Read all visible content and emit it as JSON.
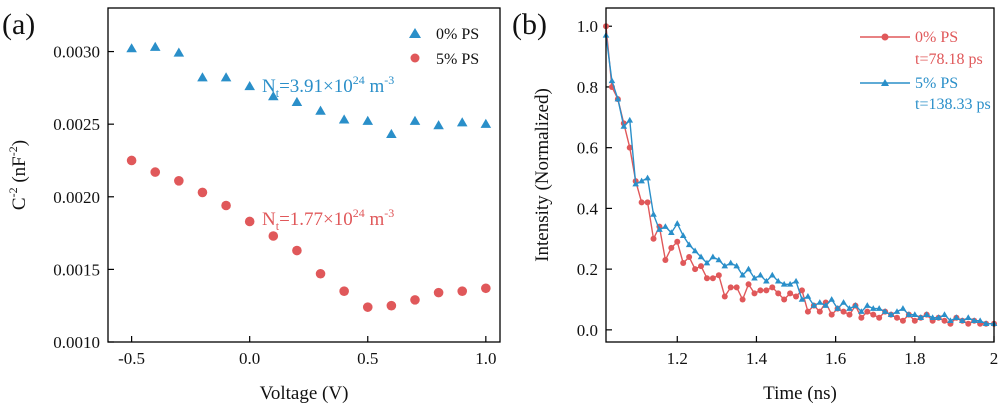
{
  "chart_data": [
    {
      "panel": "(a)",
      "type": "scatter",
      "xlabel": "Voltage (V)",
      "ylabel_base": "C",
      "ylabel_exp": "-2",
      "ylabel_unit_open": " (nF",
      "ylabel_unit_exp": "-2",
      "ylabel_unit_close": ")",
      "xlim": [
        -0.6,
        1.06
      ],
      "ylim": [
        0.001,
        0.0033
      ],
      "xticks": [
        -0.5,
        0.0,
        0.5,
        1.0
      ],
      "xtick_labels": [
        "-0.5",
        "0.0",
        "0.5",
        "1.0"
      ],
      "yticks": [
        0.001,
        0.0015,
        0.002,
        0.0025,
        0.003
      ],
      "ytick_labels": [
        "0.0010",
        "0.0015",
        "0.0020",
        "0.0025",
        "0.0030"
      ],
      "legend_position": "top-right",
      "series": [
        {
          "name": "0% PS",
          "marker": "triangle",
          "color": "#2a8fc9",
          "x": [
            -0.5,
            -0.4,
            -0.3,
            -0.2,
            -0.1,
            0.0,
            0.1,
            0.2,
            0.3,
            0.4,
            0.5,
            0.6,
            0.7,
            0.8,
            0.9,
            1.0
          ],
          "y": [
            0.00302,
            0.00303,
            0.00299,
            0.00282,
            0.00282,
            0.00276,
            0.00269,
            0.00265,
            0.00259,
            0.00253,
            0.00252,
            0.00243,
            0.00252,
            0.00249,
            0.00251,
            0.0025
          ]
        },
        {
          "name": "5% PS",
          "marker": "circle",
          "color": "#e0585a",
          "x": [
            -0.5,
            -0.4,
            -0.3,
            -0.2,
            -0.1,
            0.0,
            0.1,
            0.2,
            0.3,
            0.4,
            0.5,
            0.6,
            0.7,
            0.8,
            0.9,
            1.0
          ],
          "y": [
            0.00225,
            0.00217,
            0.00211,
            0.00203,
            0.00194,
            0.00183,
            0.00173,
            0.00163,
            0.00147,
            0.00135,
            0.00124,
            0.00125,
            0.00129,
            0.00134,
            0.00135,
            0.00137
          ]
        }
      ],
      "annotations": [
        {
          "pre": "N",
          "sub": "t",
          "mid": "=3.91×10",
          "sup": "24",
          "post": " m",
          "post_sup": "-3",
          "color": "#2a8fc9"
        },
        {
          "pre": "N",
          "sub": "t",
          "mid": "=1.77×10",
          "sup": "24",
          "post": " m",
          "post_sup": "-3",
          "color": "#e0585a"
        }
      ]
    },
    {
      "panel": "(b)",
      "type": "line",
      "xlabel": "Time (ns)",
      "ylabel": "Intensity (Normalized)",
      "xlim": [
        1.02,
        2.0
      ],
      "ylim": [
        -0.04,
        1.06
      ],
      "xticks": [
        1.2,
        1.4,
        1.6,
        1.8,
        2.0
      ],
      "xtick_labels": [
        "1.2",
        "1.4",
        "1.6",
        "1.8",
        "2"
      ],
      "yticks": [
        0.0,
        0.2,
        0.4,
        0.6,
        0.8,
        1.0
      ],
      "ytick_labels": [
        "0.0",
        "0.2",
        "0.4",
        "0.6",
        "0.8",
        "1.0"
      ],
      "legend_position": "top-right",
      "series": [
        {
          "name": "0% PS",
          "lifetime": "t=78.18 ps",
          "marker": "circle",
          "color": "#e0585a",
          "x": [
            1.02,
            1.035,
            1.05,
            1.065,
            1.08,
            1.095,
            1.11,
            1.125,
            1.14,
            1.155,
            1.17,
            1.185,
            1.2,
            1.215,
            1.23,
            1.245,
            1.26,
            1.275,
            1.29,
            1.305,
            1.32,
            1.335,
            1.35,
            1.365,
            1.38,
            1.395,
            1.41,
            1.425,
            1.44,
            1.455,
            1.47,
            1.485,
            1.5,
            1.515,
            1.53,
            1.545,
            1.56,
            1.575,
            1.59,
            1.605,
            1.62,
            1.635,
            1.65,
            1.665,
            1.68,
            1.695,
            1.71,
            1.725,
            1.74,
            1.755,
            1.77,
            1.785,
            1.8,
            1.815,
            1.83,
            1.845,
            1.86,
            1.875,
            1.89,
            1.905,
            1.92,
            1.935,
            1.95,
            1.965,
            1.98,
            2.0
          ],
          "y": [
            1.0,
            0.8,
            0.76,
            0.68,
            0.6,
            0.49,
            0.42,
            0.42,
            0.3,
            0.34,
            0.23,
            0.27,
            0.29,
            0.22,
            0.24,
            0.2,
            0.21,
            0.17,
            0.17,
            0.18,
            0.11,
            0.14,
            0.14,
            0.1,
            0.15,
            0.12,
            0.13,
            0.13,
            0.14,
            0.12,
            0.1,
            0.12,
            0.11,
            0.13,
            0.06,
            0.08,
            0.06,
            0.09,
            0.05,
            0.07,
            0.06,
            0.05,
            0.08,
            0.04,
            0.06,
            0.05,
            0.04,
            0.06,
            0.05,
            0.04,
            0.03,
            0.05,
            0.03,
            0.04,
            0.05,
            0.03,
            0.04,
            0.03,
            0.02,
            0.04,
            0.03,
            0.02,
            0.03,
            0.02,
            0.02,
            0.02
          ]
        },
        {
          "name": "5% PS",
          "lifetime": "t=138.33 ps",
          "marker": "triangle",
          "color": "#2a8fc9",
          "x": [
            1.02,
            1.035,
            1.05,
            1.065,
            1.08,
            1.095,
            1.11,
            1.125,
            1.14,
            1.155,
            1.17,
            1.185,
            1.2,
            1.215,
            1.23,
            1.245,
            1.26,
            1.275,
            1.29,
            1.305,
            1.32,
            1.335,
            1.35,
            1.365,
            1.38,
            1.395,
            1.41,
            1.425,
            1.44,
            1.455,
            1.47,
            1.485,
            1.5,
            1.515,
            1.53,
            1.545,
            1.56,
            1.575,
            1.59,
            1.605,
            1.62,
            1.635,
            1.65,
            1.665,
            1.68,
            1.695,
            1.71,
            1.725,
            1.74,
            1.755,
            1.77,
            1.785,
            1.8,
            1.815,
            1.83,
            1.845,
            1.86,
            1.875,
            1.89,
            1.905,
            1.92,
            1.935,
            1.95,
            1.965,
            1.98,
            2.0
          ],
          "y": [
            0.97,
            0.82,
            0.76,
            0.67,
            0.69,
            0.48,
            0.49,
            0.5,
            0.38,
            0.33,
            0.34,
            0.32,
            0.35,
            0.31,
            0.28,
            0.26,
            0.24,
            0.22,
            0.24,
            0.23,
            0.21,
            0.22,
            0.21,
            0.18,
            0.2,
            0.17,
            0.18,
            0.16,
            0.18,
            0.16,
            0.15,
            0.15,
            0.16,
            0.1,
            0.11,
            0.08,
            0.09,
            0.08,
            0.1,
            0.07,
            0.09,
            0.07,
            0.08,
            0.06,
            0.08,
            0.07,
            0.07,
            0.06,
            0.05,
            0.06,
            0.07,
            0.05,
            0.05,
            0.04,
            0.05,
            0.04,
            0.04,
            0.05,
            0.03,
            0.04,
            0.03,
            0.04,
            0.03,
            0.03,
            0.02,
            0.02
          ]
        }
      ]
    }
  ]
}
